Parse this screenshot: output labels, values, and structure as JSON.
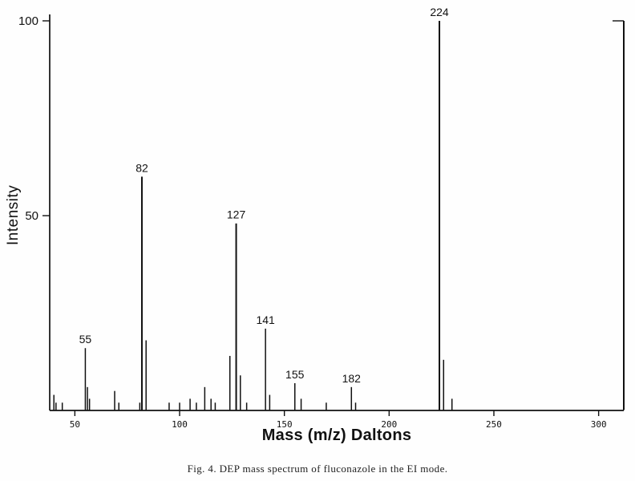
{
  "figure": {
    "y_axis_label": "Intensity",
    "x_axis_label": "Mass (m/z) Daltons",
    "caption": "Fig. 4. DEP mass spectrum of fluconazole in the EI mode."
  },
  "chart_data": {
    "type": "bar",
    "title": "",
    "xlabel": "Mass (m/z) Daltons",
    "ylabel": "Intensity",
    "xlim": [
      38,
      312
    ],
    "ylim": [
      0,
      100
    ],
    "x_ticks": [
      50,
      100,
      150,
      200,
      250,
      300
    ],
    "y_ticks": [
      50,
      100
    ],
    "grid": false,
    "legend": false,
    "ink_color": "#111111",
    "peaks": [
      {
        "mz": 40,
        "intensity": 4
      },
      {
        "mz": 41,
        "intensity": 2
      },
      {
        "mz": 44,
        "intensity": 2
      },
      {
        "mz": 55,
        "intensity": 16,
        "label": "55"
      },
      {
        "mz": 56,
        "intensity": 6
      },
      {
        "mz": 57,
        "intensity": 3
      },
      {
        "mz": 69,
        "intensity": 5
      },
      {
        "mz": 71,
        "intensity": 2
      },
      {
        "mz": 81,
        "intensity": 2
      },
      {
        "mz": 82,
        "intensity": 60,
        "label": "82"
      },
      {
        "mz": 84,
        "intensity": 18
      },
      {
        "mz": 95,
        "intensity": 2
      },
      {
        "mz": 100,
        "intensity": 2
      },
      {
        "mz": 105,
        "intensity": 3
      },
      {
        "mz": 108,
        "intensity": 2
      },
      {
        "mz": 112,
        "intensity": 6
      },
      {
        "mz": 115,
        "intensity": 3
      },
      {
        "mz": 117,
        "intensity": 2
      },
      {
        "mz": 124,
        "intensity": 14
      },
      {
        "mz": 127,
        "intensity": 48,
        "label": "127"
      },
      {
        "mz": 129,
        "intensity": 9
      },
      {
        "mz": 132,
        "intensity": 2
      },
      {
        "mz": 141,
        "intensity": 21,
        "label": "141"
      },
      {
        "mz": 143,
        "intensity": 4
      },
      {
        "mz": 155,
        "intensity": 7,
        "label": "155"
      },
      {
        "mz": 158,
        "intensity": 3
      },
      {
        "mz": 170,
        "intensity": 2
      },
      {
        "mz": 182,
        "intensity": 6,
        "label": "182"
      },
      {
        "mz": 184,
        "intensity": 2
      },
      {
        "mz": 224,
        "intensity": 100,
        "label": "224"
      },
      {
        "mz": 226,
        "intensity": 13
      },
      {
        "mz": 230,
        "intensity": 3
      },
      {
        "mz": 312,
        "intensity": 100
      }
    ]
  }
}
